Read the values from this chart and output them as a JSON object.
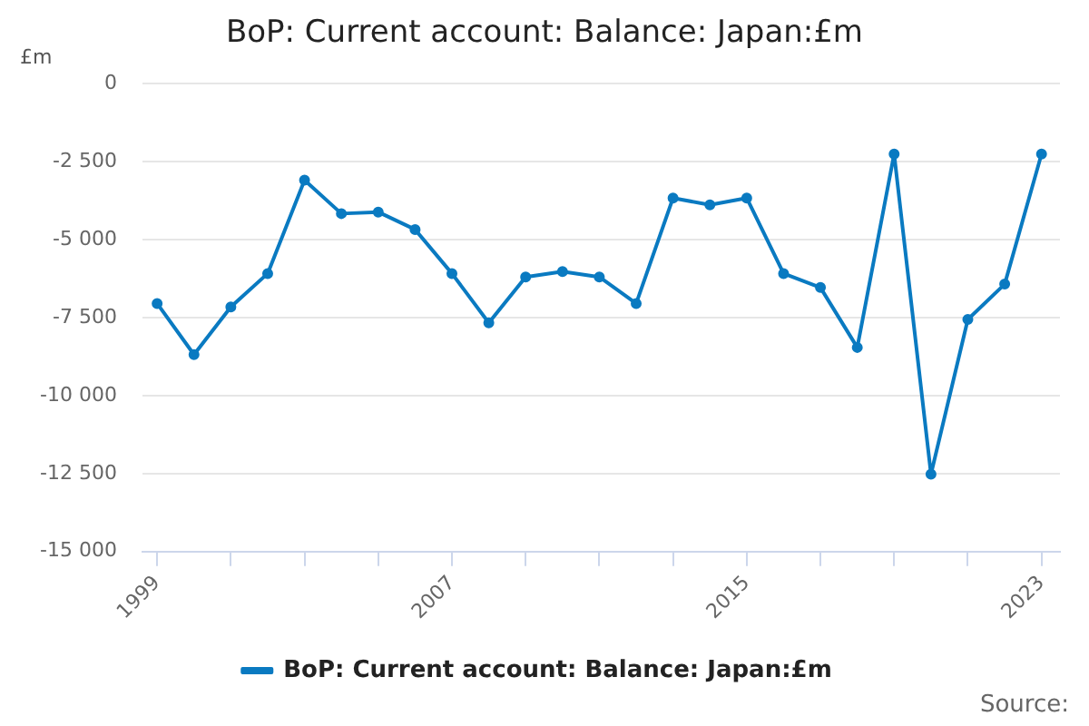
{
  "chart_data": {
    "type": "line",
    "title": "BoP: Current account: Balance: Japan:£m",
    "ylabel": "£m",
    "x": [
      1999,
      2000,
      2001,
      2002,
      2003,
      2004,
      2005,
      2006,
      2007,
      2008,
      2009,
      2010,
      2011,
      2012,
      2013,
      2014,
      2015,
      2016,
      2017,
      2018,
      2019,
      2020,
      2021,
      2022,
      2023
    ],
    "series": [
      {
        "name": "BoP: Current account: Balance: Japan:£m",
        "color": "#0a7ac1",
        "values": [
          -7050,
          -8690,
          -7160,
          -6090,
          -3100,
          -4170,
          -4120,
          -4680,
          -6090,
          -7670,
          -6200,
          -6030,
          -6200,
          -7050,
          -3670,
          -3890,
          -3670,
          -6090,
          -6540,
          -8460,
          -2260,
          -12520,
          -7560,
          -6430,
          -2260
        ]
      }
    ],
    "xlim": [
      1998.6,
      2023.5
    ],
    "xticks": [
      1999,
      {
        "value": 2001,
        "label": null
      },
      {
        "value": 2003,
        "label": null
      },
      {
        "value": 2005,
        "label": null
      },
      2007,
      {
        "value": 2009,
        "label": null
      },
      {
        "value": 2011,
        "label": null
      },
      {
        "value": 2013,
        "label": null
      },
      2015,
      {
        "value": 2017,
        "label": null
      },
      {
        "value": 2019,
        "label": null
      },
      {
        "value": 2021,
        "label": null
      },
      2023
    ],
    "ylim": [
      -15000,
      0
    ],
    "yticks": [
      0,
      {
        "value": -2500,
        "label": "-2 500"
      },
      {
        "value": -5000,
        "label": "-5 000"
      },
      {
        "value": -7500,
        "label": "-7 500"
      },
      {
        "value": -10000,
        "label": "-10 000"
      },
      {
        "value": -12500,
        "label": "-12 500"
      },
      {
        "value": -15000,
        "label": "-15 000"
      }
    ],
    "grid": "y",
    "legend": "bottom",
    "marker": "circle",
    "line_style": "solid",
    "annotations": [
      "Source:"
    ]
  }
}
